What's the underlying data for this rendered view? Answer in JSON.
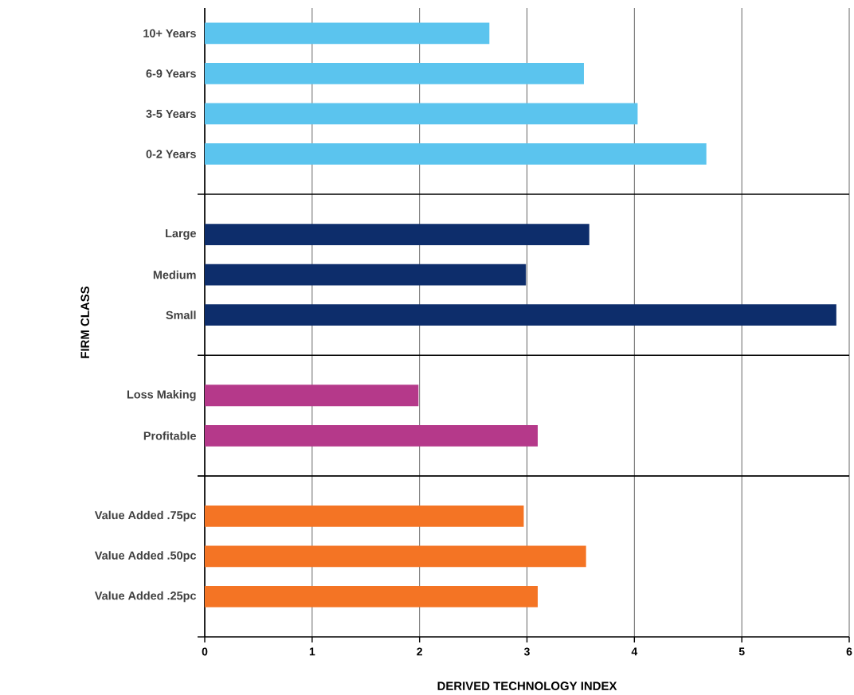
{
  "chart_data": {
    "type": "bar",
    "orientation": "horizontal",
    "xlabel": "DERIVED TECHNOLOGY INDEX",
    "ylabel": "FIRM CLASS",
    "categories": [
      "10+ Years",
      "6-9 Years",
      "3-5 Years",
      "0-2 Years",
      "Large",
      "Medium",
      "Small",
      "Loss Making",
      "Profitable",
      "Value Added .75pc",
      "Value Added .50pc",
      "Value Added .25pc"
    ],
    "series": [
      {
        "color": "#5bc4ee",
        "values": [
          2.65,
          3.53,
          4.03,
          4.67,
          null,
          null,
          null,
          null,
          null,
          null,
          null,
          null
        ]
      },
      {
        "color": "#0d2d6b",
        "values": [
          null,
          null,
          null,
          null,
          3.58,
          2.99,
          5.88,
          null,
          null,
          null,
          null,
          null
        ]
      },
      {
        "color": "#b5398a",
        "values": [
          null,
          null,
          null,
          null,
          null,
          null,
          null,
          1.99,
          3.1,
          null,
          null,
          null
        ]
      },
      {
        "color": "#f47424",
        "values": [
          null,
          null,
          null,
          null,
          null,
          null,
          null,
          null,
          null,
          2.97,
          3.55,
          3.1
        ]
      }
    ],
    "xlim": [
      0,
      6
    ],
    "xticks": [
      0,
      1,
      2,
      3,
      4,
      5,
      6
    ],
    "grid": "x"
  }
}
